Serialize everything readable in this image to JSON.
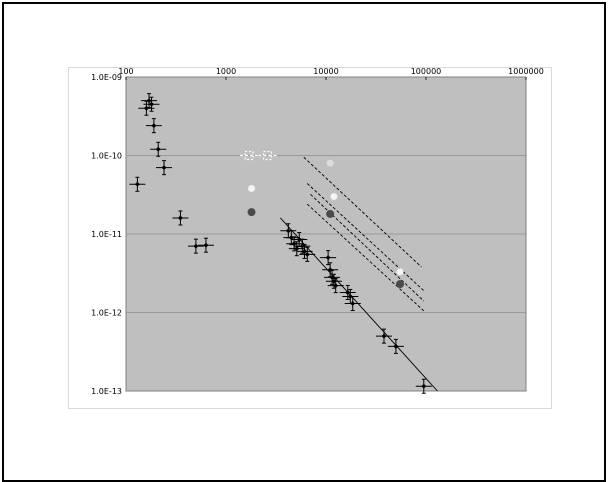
{
  "chart_data": {
    "type": "scatter",
    "x_scale": "log",
    "y_scale": "log",
    "xlim": [
      100,
      1000000
    ],
    "ylim": [
      1e-13,
      1e-09
    ],
    "x_tick_labels": [
      "100",
      "1000",
      "10000",
      "100000",
      "1000000"
    ],
    "y_tick_labels": [
      "1.0E-09",
      "1.0E-10",
      "1.0E-11",
      "1.0E-12",
      "1.0E-13"
    ],
    "x_axis_position": "top",
    "grid": "horizontal",
    "plot_background": "#bfbfbf",
    "series": [
      {
        "marker": "black-diamond-with-errorbars",
        "points": [
          {
            "x": 130,
            "y": 4.3e-11
          },
          {
            "x": 160,
            "y": 4e-10
          },
          {
            "x": 170,
            "y": 5e-10
          },
          {
            "x": 180,
            "y": 4.5e-10
          },
          {
            "x": 190,
            "y": 2.4e-10
          },
          {
            "x": 210,
            "y": 1.2e-10
          },
          {
            "x": 240,
            "y": 7e-11
          },
          {
            "x": 350,
            "y": 1.6e-11
          },
          {
            "x": 500,
            "y": 7e-12
          },
          {
            "x": 630,
            "y": 7.2e-12
          },
          {
            "x": 4200,
            "y": 1.1e-11
          },
          {
            "x": 4500,
            "y": 9e-12
          },
          {
            "x": 4800,
            "y": 7.5e-12
          },
          {
            "x": 5100,
            "y": 6.5e-12
          },
          {
            "x": 5400,
            "y": 8.5e-12
          },
          {
            "x": 5800,
            "y": 7e-12
          },
          {
            "x": 6100,
            "y": 6e-12
          },
          {
            "x": 6500,
            "y": 5.5e-12
          },
          {
            "x": 10500,
            "y": 5e-12
          },
          {
            "x": 11000,
            "y": 3.5e-12
          },
          {
            "x": 11500,
            "y": 2.8e-12
          },
          {
            "x": 12000,
            "y": 2.5e-12
          },
          {
            "x": 12500,
            "y": 2.2e-12
          },
          {
            "x": 16500,
            "y": 1.8e-12
          },
          {
            "x": 17500,
            "y": 1.6e-12
          },
          {
            "x": 18500,
            "y": 1.3e-12
          },
          {
            "x": 38000,
            "y": 5e-13
          },
          {
            "x": 50000,
            "y": 3.7e-13
          },
          {
            "x": 95000,
            "y": 1.15e-13
          }
        ]
      },
      {
        "marker": "dark-grey-dot",
        "points": [
          {
            "x": 1800,
            "y": 1.9e-11
          },
          {
            "x": 11000,
            "y": 1.8e-11
          },
          {
            "x": 55000,
            "y": 2.3e-12
          }
        ]
      },
      {
        "marker": "white-dot",
        "points": [
          {
            "x": 1800,
            "y": 3.8e-11
          },
          {
            "x": 12000,
            "y": 3e-11
          },
          {
            "x": 55000,
            "y": 3.3e-12
          }
        ]
      },
      {
        "marker": "light-grey-dot",
        "points": [
          {
            "x": 11000,
            "y": 8e-11
          }
        ]
      },
      {
        "marker": "open-dashed-box",
        "points": [
          {
            "x": 1700,
            "y": 1e-10
          },
          {
            "x": 2600,
            "y": 1e-10
          }
        ]
      }
    ],
    "lines": [
      {
        "style": "solid",
        "from": [
          3500,
          1.6e-11
        ],
        "to": [
          130000,
          1e-13
        ]
      },
      {
        "style": "dashed",
        "from": [
          6000,
          9.5e-11
        ],
        "to": [
          90000,
          3.8e-12
        ]
      },
      {
        "style": "dashed",
        "from": [
          6500,
          4.4e-11
        ],
        "to": [
          95000,
          1.9e-12
        ]
      },
      {
        "style": "dashed",
        "from": [
          7000,
          3.2e-11
        ],
        "to": [
          95000,
          1.4e-12
        ]
      },
      {
        "style": "dashed",
        "from": [
          6500,
          2.4e-11
        ],
        "to": [
          95000,
          1.05e-12
        ]
      }
    ]
  }
}
